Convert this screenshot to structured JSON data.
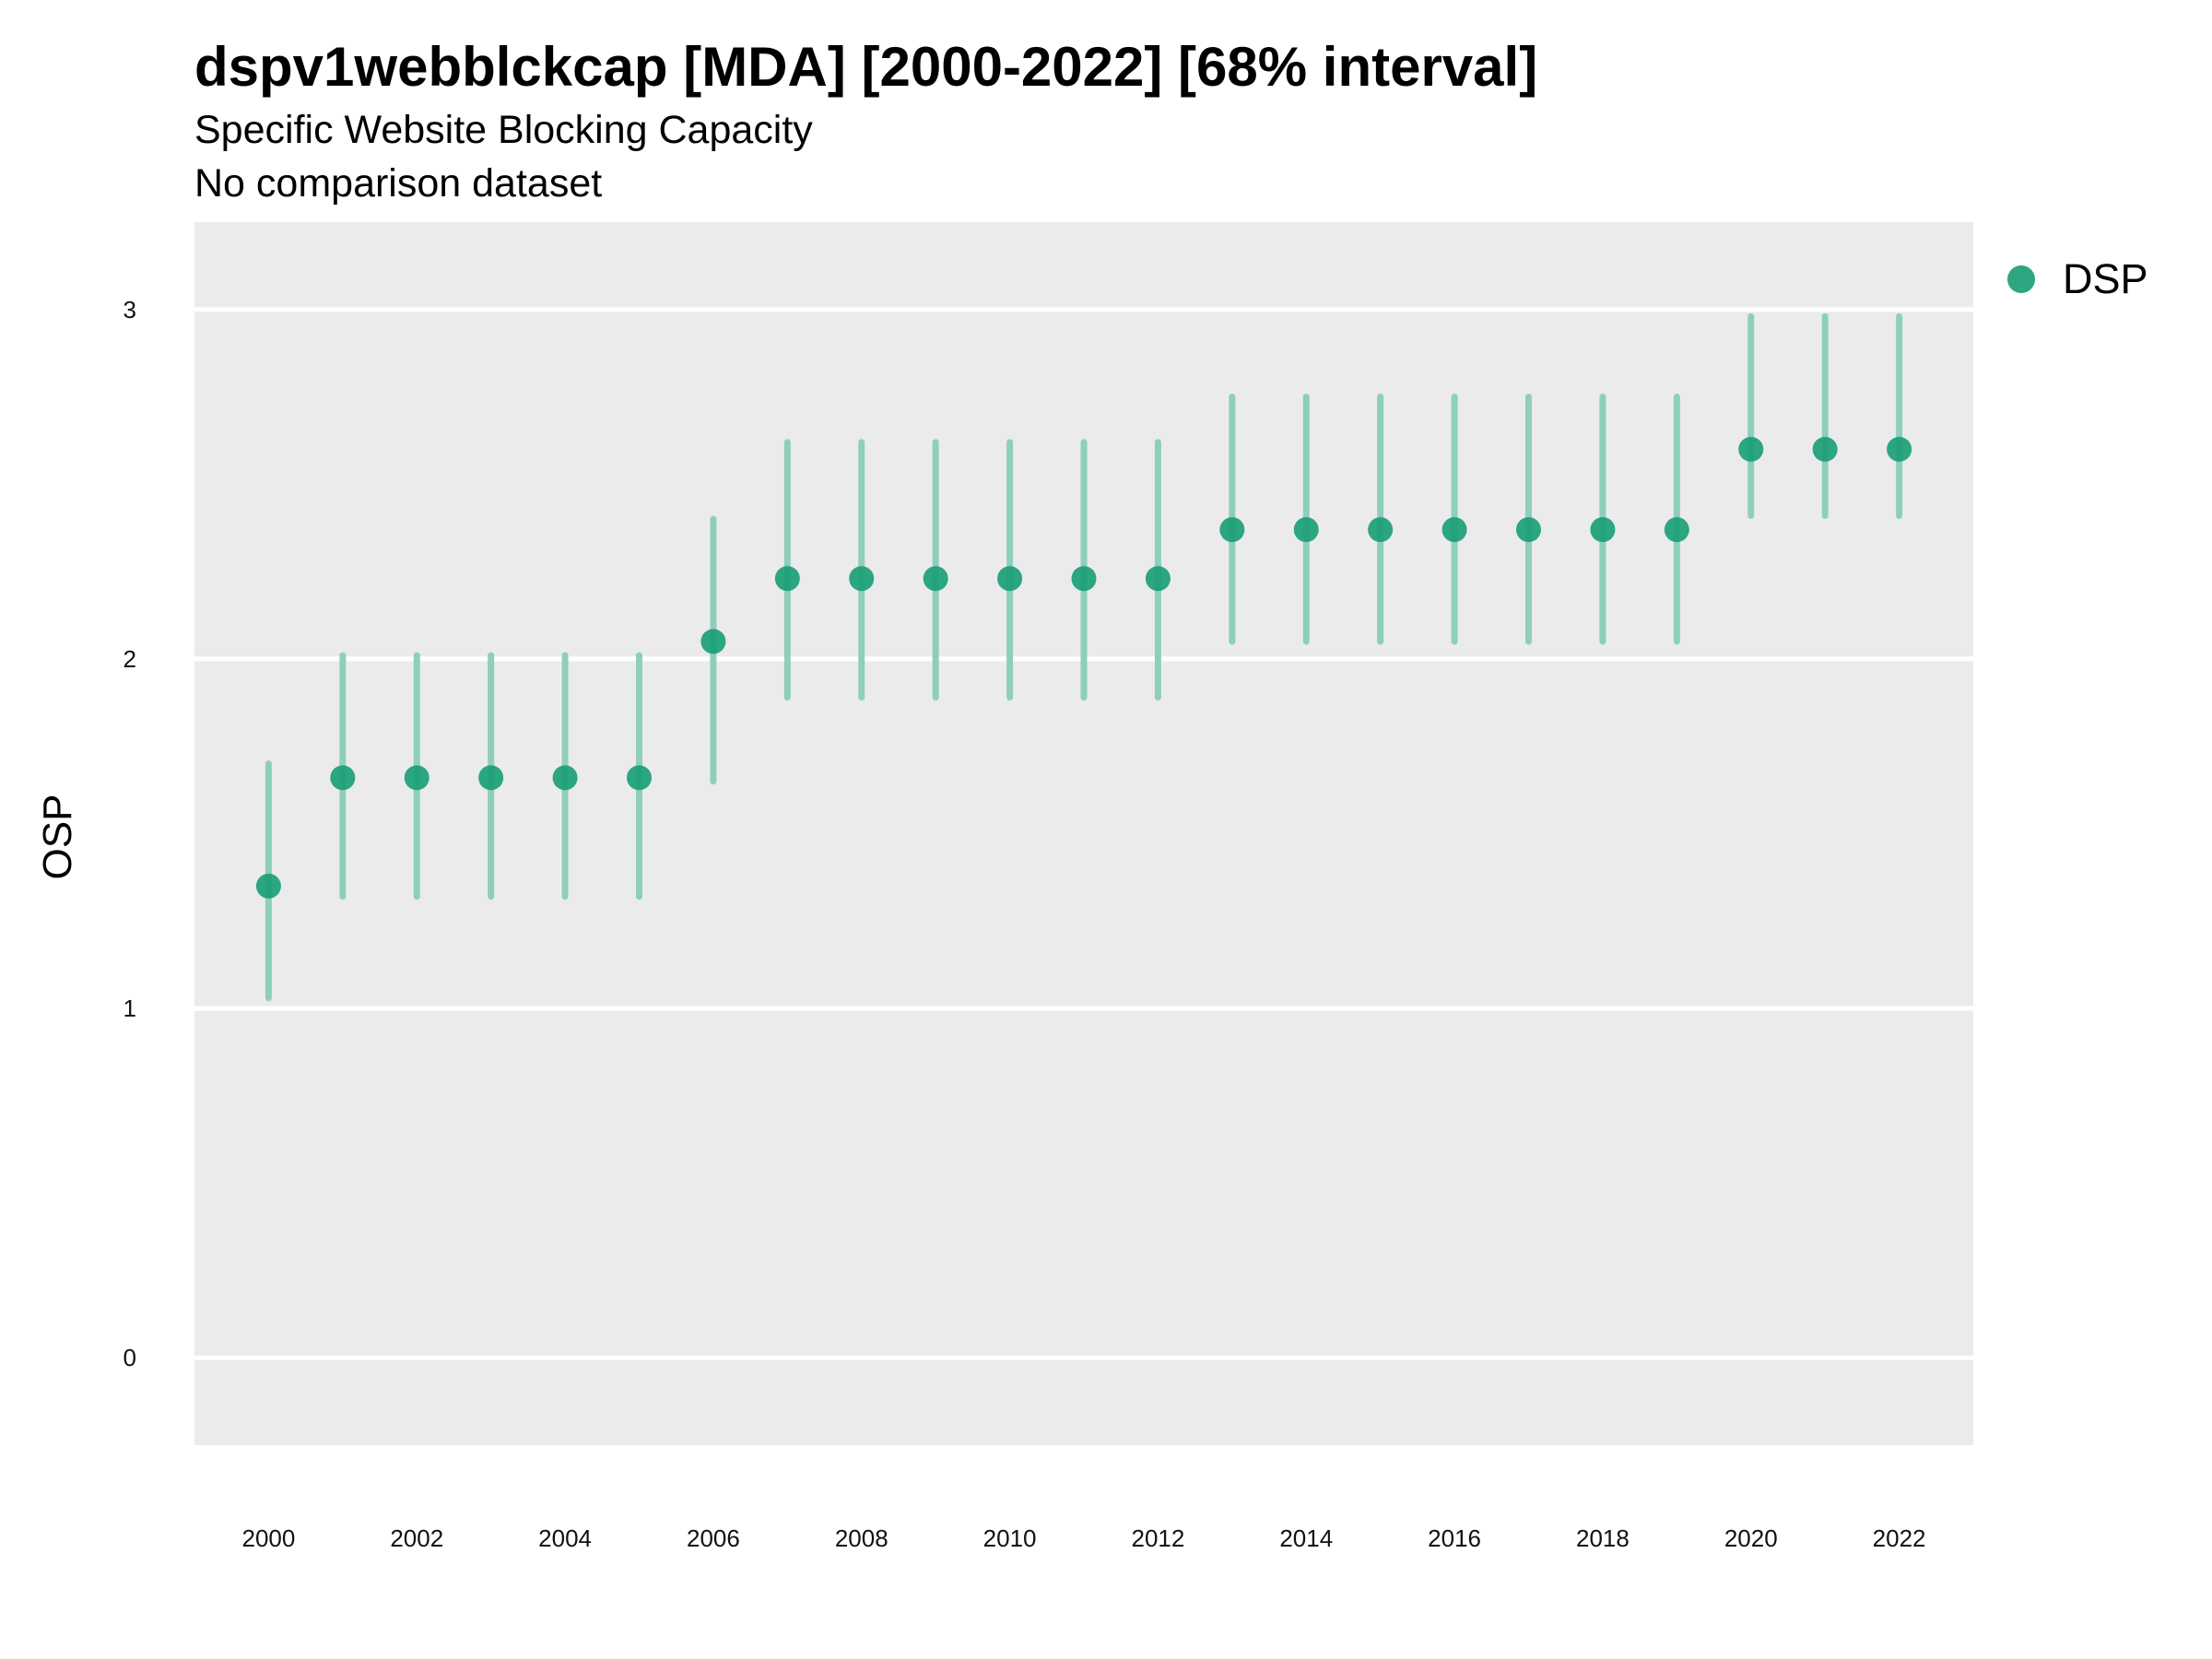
{
  "chart_data": {
    "type": "scatter",
    "title": "dspv1webblckcap [MDA] [2000-2022] [68% interval]",
    "subtitle": "Specific Website Blocking Capacity",
    "subtitle2": "No comparison dataset",
    "xlabel": "",
    "ylabel": "OSP",
    "x_tick_labels": [
      "2000",
      "2002",
      "2004",
      "2006",
      "2008",
      "2010",
      "2012",
      "2014",
      "2016",
      "2018",
      "2020",
      "2022"
    ],
    "y_tick_labels": [
      "0",
      "1",
      "2",
      "3"
    ],
    "xlim": [
      1999,
      2023
    ],
    "ylim": [
      -0.25,
      3.25
    ],
    "grid": true,
    "legend_position": "top-right",
    "series": [
      {
        "name": "DSP",
        "color": "#1B9E77",
        "interval_color": "#8ECFBA",
        "x": [
          2000,
          2001,
          2002,
          2003,
          2004,
          2005,
          2006,
          2007,
          2008,
          2009,
          2010,
          2011,
          2012,
          2013,
          2014,
          2015,
          2016,
          2017,
          2018,
          2019,
          2020,
          2021,
          2022
        ],
        "y": [
          1.35,
          1.66,
          1.66,
          1.66,
          1.66,
          1.66,
          2.05,
          2.23,
          2.23,
          2.23,
          2.23,
          2.23,
          2.23,
          2.37,
          2.37,
          2.37,
          2.37,
          2.37,
          2.37,
          2.37,
          2.6,
          2.6,
          2.6
        ],
        "lower": [
          1.03,
          1.32,
          1.32,
          1.32,
          1.32,
          1.32,
          1.65,
          1.89,
          1.89,
          1.89,
          1.89,
          1.89,
          1.89,
          2.05,
          2.05,
          2.05,
          2.05,
          2.05,
          2.05,
          2.05,
          2.41,
          2.41,
          2.41
        ],
        "upper": [
          1.7,
          2.01,
          2.01,
          2.01,
          2.01,
          2.01,
          2.4,
          2.62,
          2.62,
          2.62,
          2.62,
          2.62,
          2.62,
          2.75,
          2.75,
          2.75,
          2.75,
          2.75,
          2.75,
          2.75,
          2.98,
          2.98,
          2.98
        ]
      }
    ]
  }
}
